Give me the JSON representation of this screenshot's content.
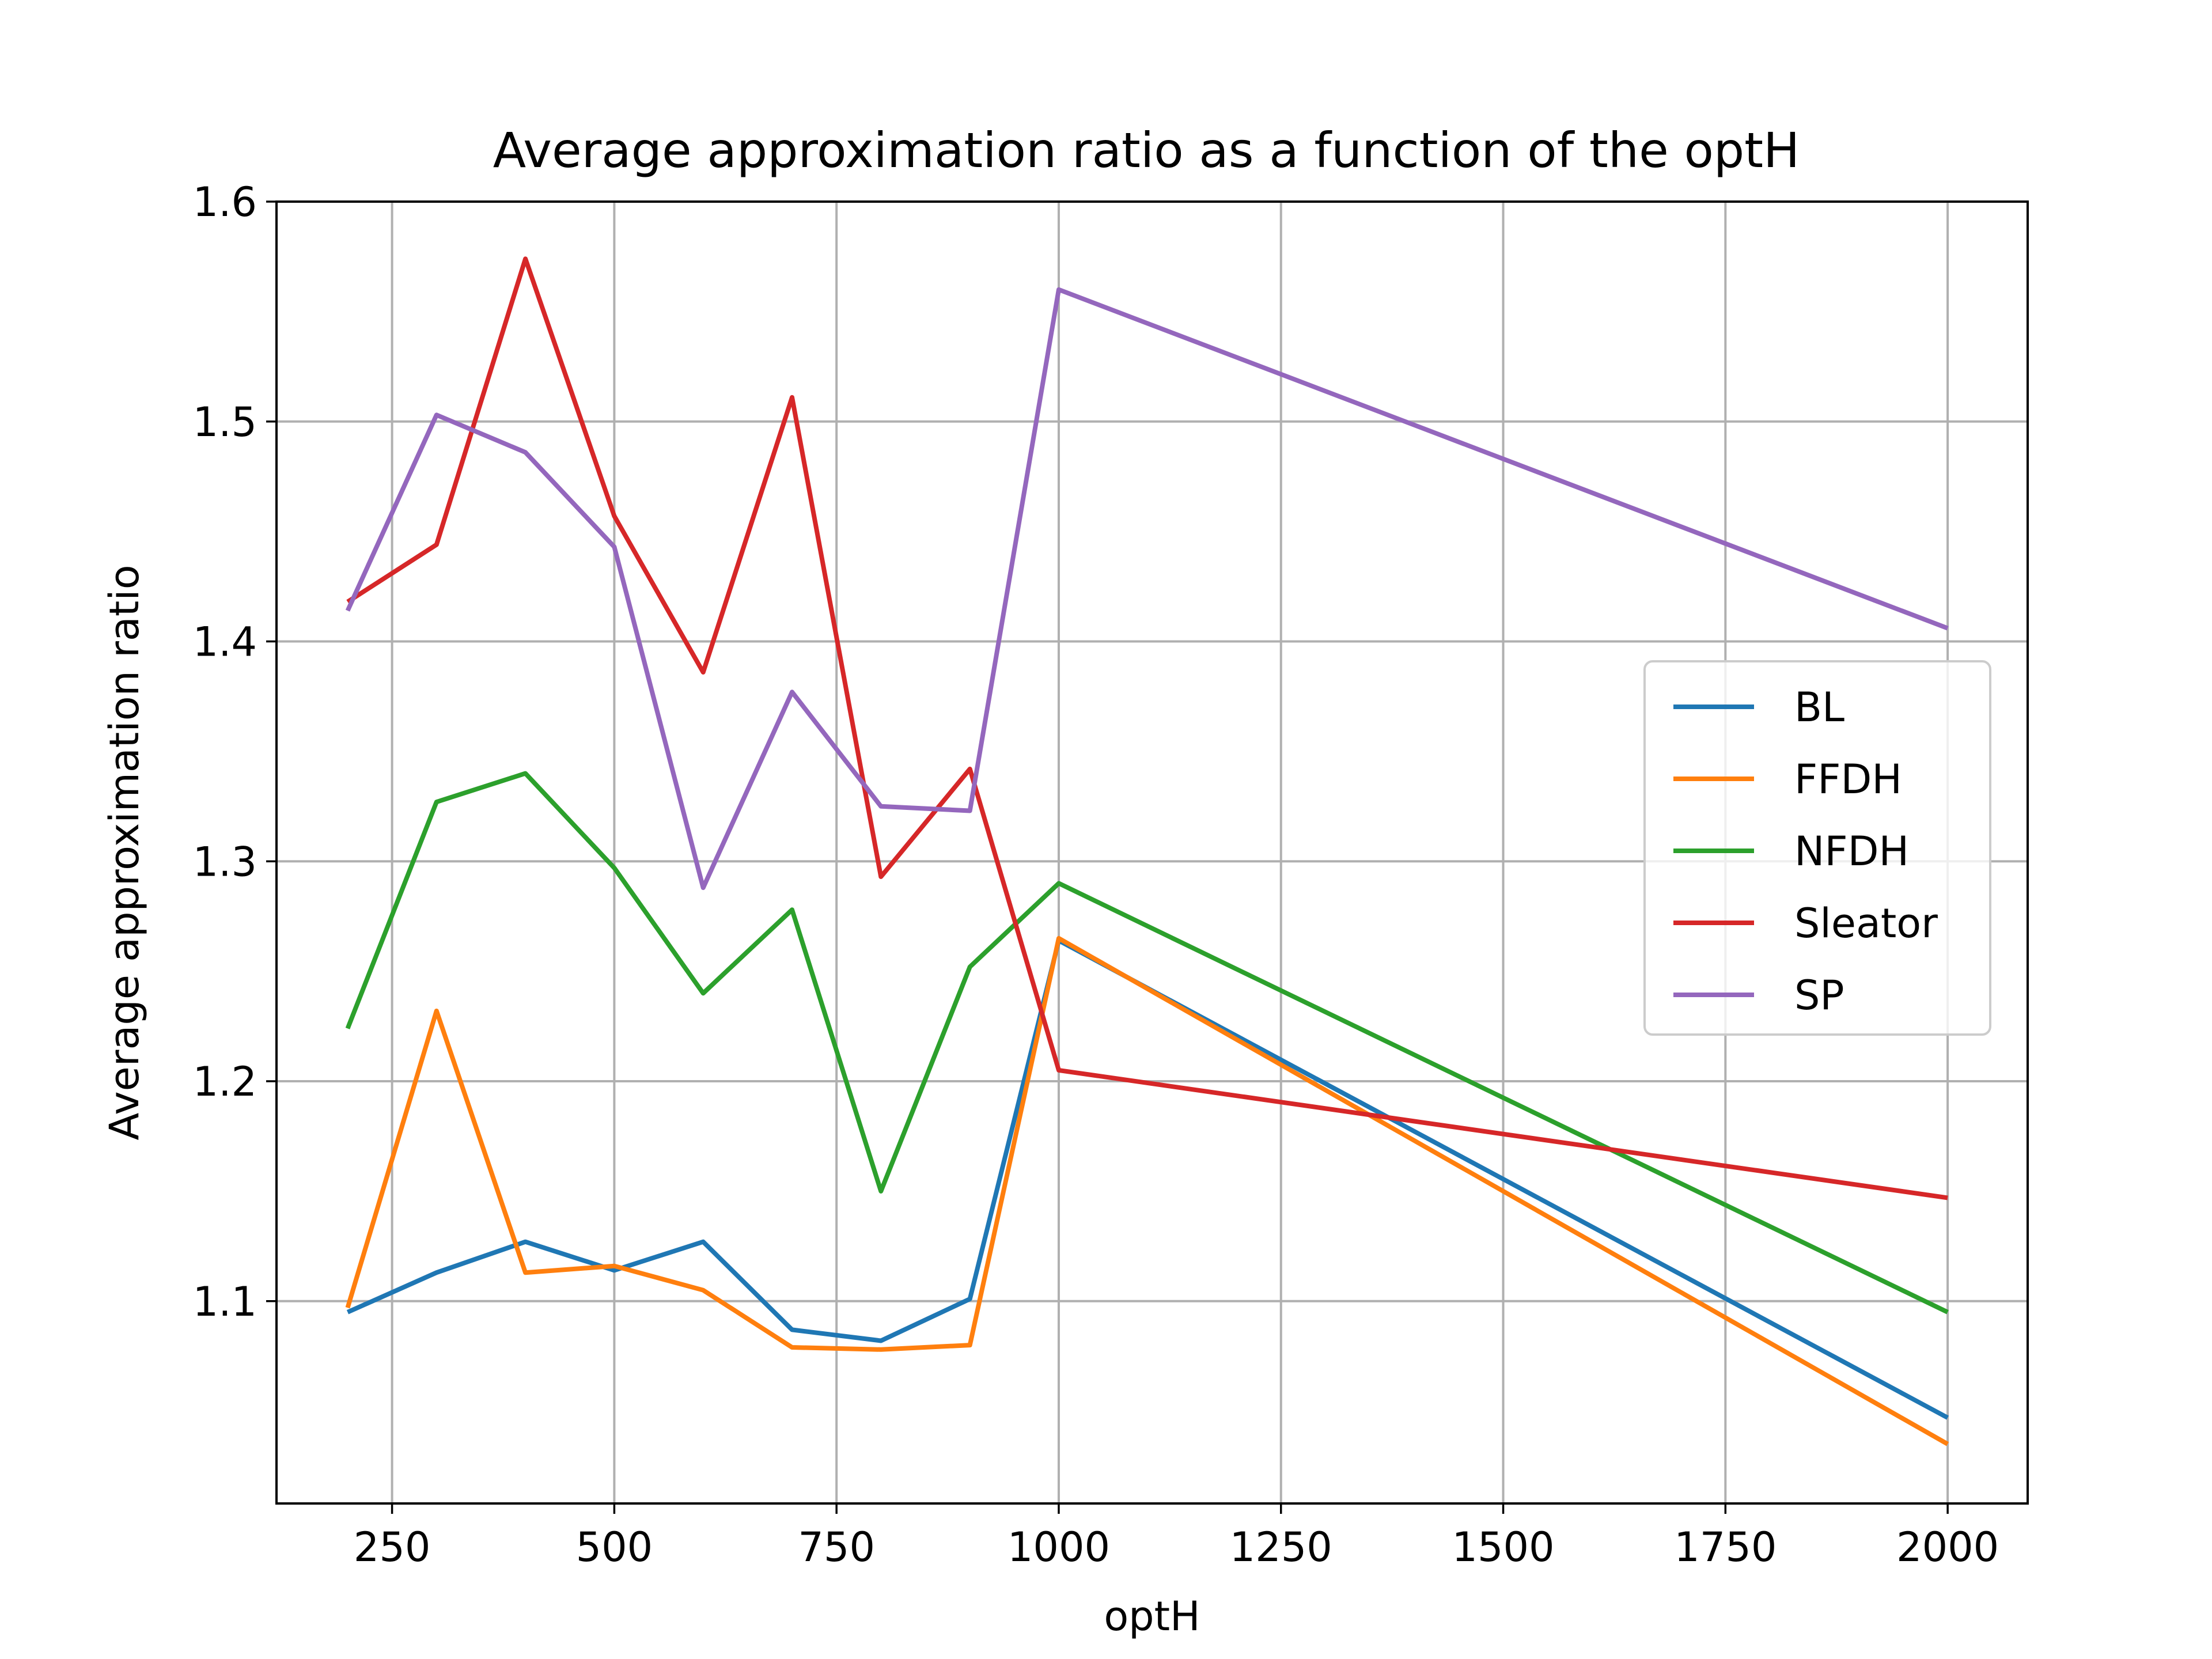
{
  "chart_data": {
    "type": "line",
    "title": "Average approximation ratio as a function of the optH",
    "xlabel": "optH",
    "ylabel": "Average approximation ratio",
    "xlim": [
      120,
      2090
    ],
    "ylim": [
      1.008,
      1.6
    ],
    "xticks": [
      250,
      500,
      750,
      1000,
      1250,
      1500,
      1750,
      2000
    ],
    "yticks": [
      1.1,
      1.2,
      1.3,
      1.4,
      1.5,
      1.6
    ],
    "xtick_labels": [
      "250",
      "500",
      "750",
      "1000",
      "1250",
      "1500",
      "1750",
      "2000"
    ],
    "ytick_labels": [
      "1.1",
      "1.2",
      "1.3",
      "1.4",
      "1.5",
      "1.6"
    ],
    "grid": true,
    "legend_position": "center-right",
    "x": [
      200,
      300,
      400,
      500,
      600,
      700,
      800,
      900,
      1000,
      2000
    ],
    "series": [
      {
        "name": "BL",
        "color": "#1f77b4",
        "values": [
          1.095,
          1.113,
          1.127,
          1.114,
          1.127,
          1.087,
          1.082,
          1.101,
          1.264,
          1.047
        ]
      },
      {
        "name": "FFDH",
        "color": "#ff7f0e",
        "values": [
          1.097,
          1.232,
          1.113,
          1.116,
          1.105,
          1.079,
          1.078,
          1.08,
          1.265,
          1.035
        ]
      },
      {
        "name": "NFDH",
        "color": "#2ca02c",
        "values": [
          1.224,
          1.327,
          1.34,
          1.297,
          1.24,
          1.278,
          1.15,
          1.252,
          1.29,
          1.095
        ]
      },
      {
        "name": "Sleator",
        "color": "#d62728",
        "values": [
          1.418,
          1.444,
          1.574,
          1.457,
          1.386,
          1.511,
          1.293,
          1.342,
          1.205,
          1.147
        ]
      },
      {
        "name": "SP",
        "color": "#9467bd",
        "values": [
          1.414,
          1.503,
          1.486,
          1.443,
          1.288,
          1.377,
          1.325,
          1.323,
          1.56,
          1.406
        ]
      }
    ]
  }
}
